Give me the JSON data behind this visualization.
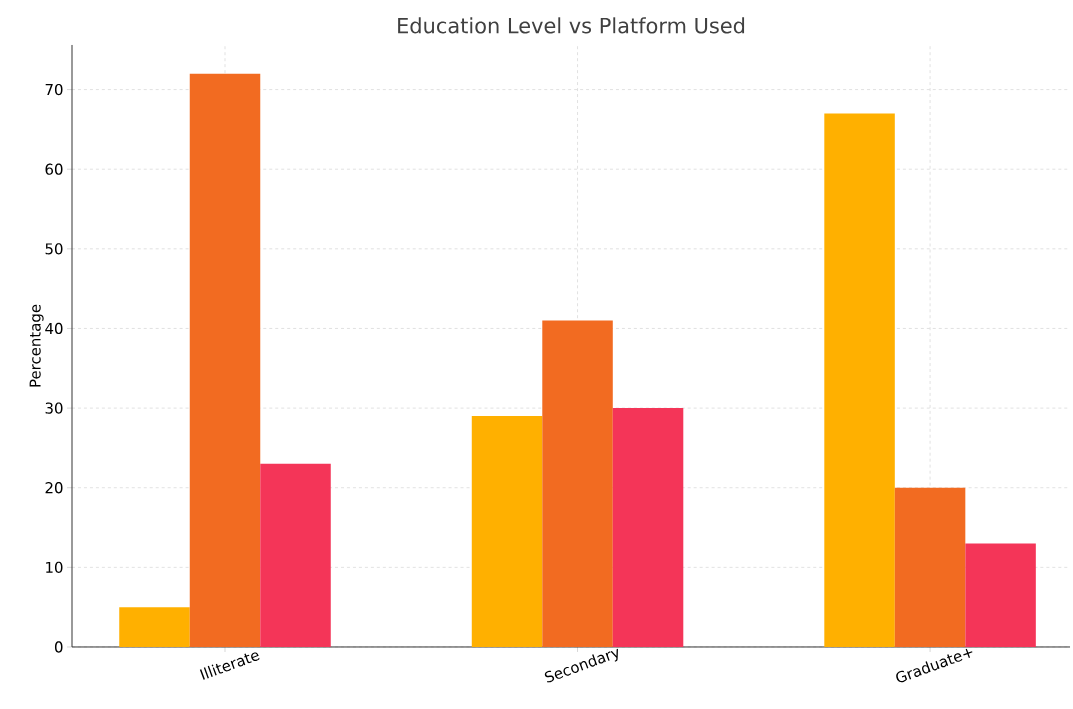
{
  "chart_data": {
    "type": "bar",
    "title": "Education Level vs Platform Used",
    "ylabel": "Percentage",
    "categories": [
      "Illiterate",
      "Secondary",
      "Graduate+"
    ],
    "series": [
      {
        "color": "#ffb000",
        "values": [
          5,
          29,
          67
        ]
      },
      {
        "color": "#f26b21",
        "values": [
          72,
          41,
          20
        ]
      },
      {
        "color": "#f43558",
        "values": [
          23,
          30,
          13
        ]
      }
    ],
    "ylim": [
      0,
      75.6
    ],
    "yticks": [
      0,
      10,
      20,
      30,
      40,
      50,
      60,
      70
    ],
    "grid": true
  }
}
